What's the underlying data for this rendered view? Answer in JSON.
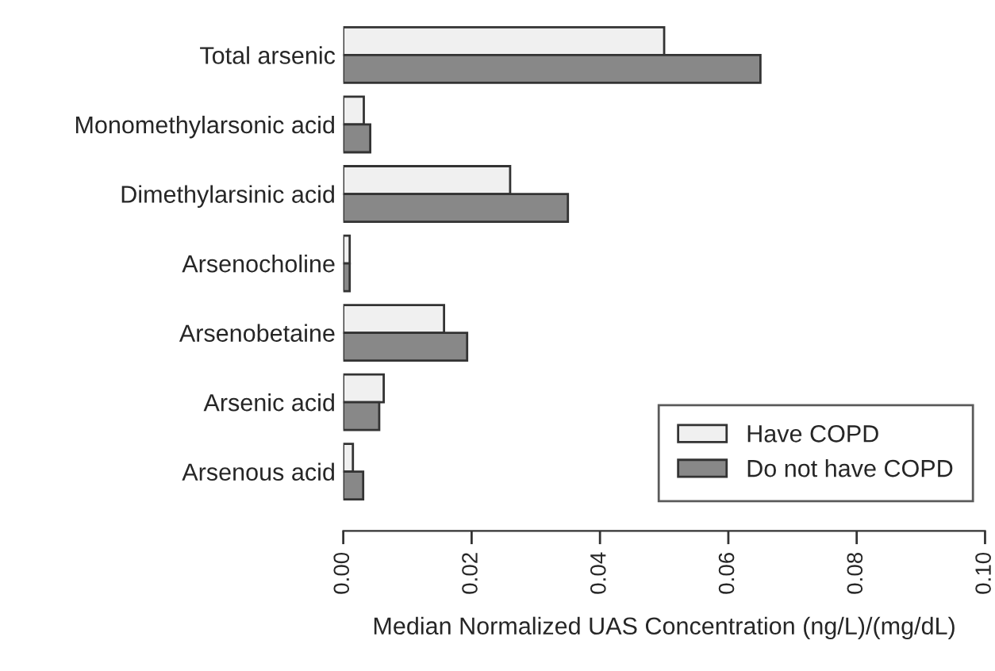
{
  "chart_data": {
    "type": "bar",
    "orientation": "horizontal",
    "xlabel": "Median Normalized UAS Concentration (ng/L)/(mg/dL)",
    "categories": [
      "Total arsenic",
      "Monomethylarsonic acid",
      "Dimethylarsinic acid",
      "Arsenocholine",
      "Arsenobetaine",
      "Arsenic acid",
      "Arsenous acid"
    ],
    "series": [
      {
        "name": "Have COPD",
        "color": "#f0f0f0",
        "values": [
          0.05,
          0.0032,
          0.026,
          0.001,
          0.0157,
          0.0063,
          0.0015
        ]
      },
      {
        "name": "Do not have COPD",
        "color": "#888888",
        "values": [
          0.065,
          0.0042,
          0.035,
          0.001,
          0.0193,
          0.0056,
          0.0031
        ]
      }
    ],
    "xlim": [
      0,
      0.1
    ],
    "xticks": [
      {
        "value": 0,
        "label": "0.00"
      },
      {
        "value": 0.02,
        "label": "0.02"
      },
      {
        "value": 0.04,
        "label": "0.04"
      },
      {
        "value": 0.06,
        "label": "0.06"
      },
      {
        "value": 0.08,
        "label": "0.08"
      },
      {
        "value": 0.1,
        "label": "0.10"
      }
    ],
    "legend": "bottom right",
    "grid": false
  }
}
